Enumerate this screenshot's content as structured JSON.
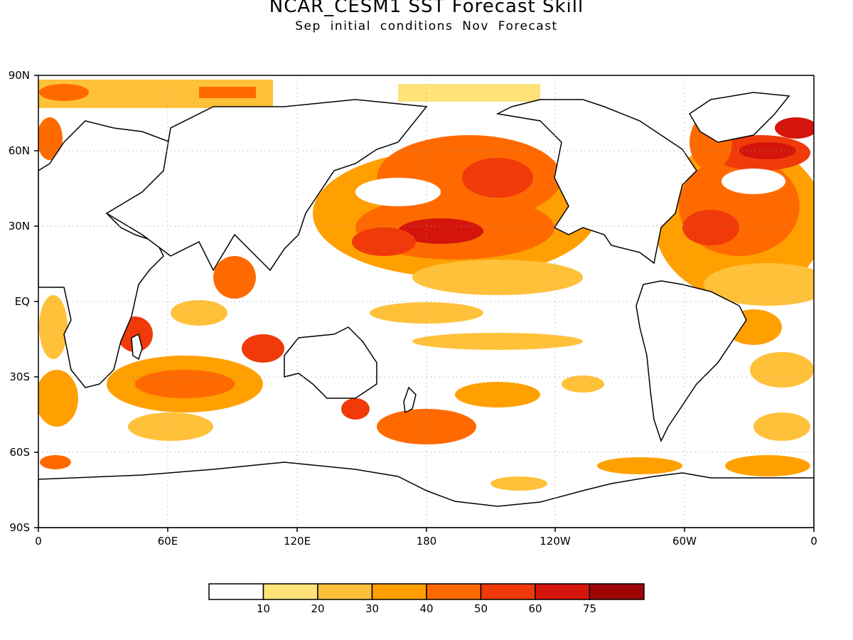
{
  "title": "NCAR_CESM1 SST Forecast Skill",
  "subtitle": "Sep initial conditions  Nov Forecast",
  "map": {
    "type": "global filled-contour map",
    "projection": "cylindrical equidistant",
    "lon_range": [
      0,
      360
    ],
    "lat_range": [
      -90,
      90
    ],
    "grid_lines": "dotted",
    "lat_tick_labels": [
      "90N",
      "60N",
      "30N",
      "EQ",
      "30S",
      "60S",
      "90S"
    ],
    "lon_tick_labels": [
      "0",
      "60E",
      "120E",
      "180",
      "120W",
      "60W",
      "0"
    ]
  },
  "colorbar": {
    "orientation": "horizontal",
    "position": "bottom",
    "thresholds": [
      "10",
      "20",
      "30",
      "40",
      "50",
      "60",
      "75"
    ],
    "colors": [
      "#ffffff",
      "#ffe278",
      "#ffc13a",
      "#ffa000",
      "#ff6a00",
      "#f03a0a",
      "#d4150c",
      "#a00505"
    ]
  }
}
